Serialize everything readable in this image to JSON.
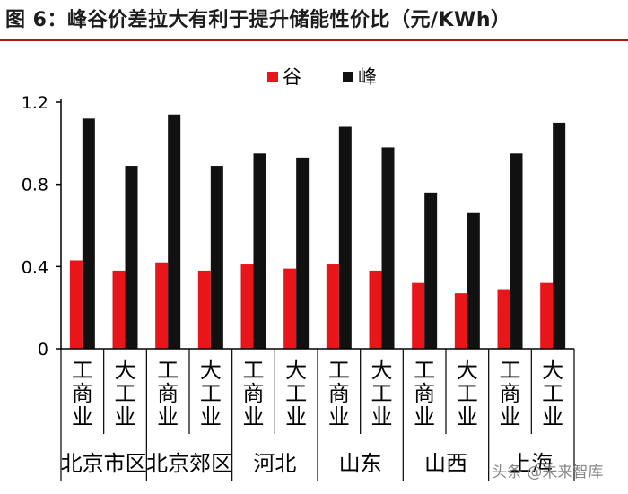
{
  "figure": {
    "title": "图 6：峰谷价差拉大有利于提升储能性价比（元/KWh）"
  },
  "chart_data": {
    "type": "bar",
    "title": "图 6：峰谷价差拉大有利于提升储能性价比（元/KWh）",
    "xlabel": "",
    "ylabel": "",
    "ylim": [
      0,
      1.2
    ],
    "yticks": [
      0,
      0.4,
      0.8,
      1.2
    ],
    "ytick_labels": [
      "0",
      "0.4",
      "0.8",
      "1.2"
    ],
    "legend_position": "top-center",
    "categories": [
      "工商业",
      "大工业",
      "工商业",
      "大工业",
      "工商业",
      "大工业",
      "工商业",
      "大工业",
      "工商业",
      "大工业",
      "工商业",
      "大工业"
    ],
    "groups": [
      "北京市区",
      "北京郊区",
      "河北",
      "山东",
      "山西",
      "上海"
    ],
    "series": [
      {
        "name": "谷",
        "color": "#e8151b",
        "values": [
          0.43,
          0.38,
          0.42,
          0.38,
          0.41,
          0.39,
          0.41,
          0.38,
          0.32,
          0.27,
          0.29,
          0.32
        ]
      },
      {
        "name": "峰",
        "color": "#111111",
        "values": [
          1.12,
          0.89,
          1.14,
          0.89,
          0.95,
          0.93,
          1.08,
          0.98,
          0.76,
          0.66,
          0.95,
          1.1
        ]
      }
    ]
  },
  "watermark": "头条 @未来智库"
}
